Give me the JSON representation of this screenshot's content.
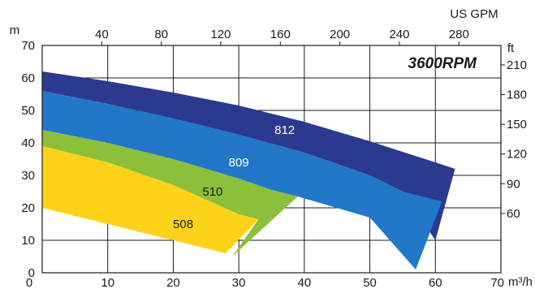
{
  "chart_data": {
    "type": "area",
    "title": "3600RPM",
    "x_unit_label": "m³/h",
    "y_unit_label": "m",
    "top_axis_unit_label": "US GPM",
    "right_axis_unit_label": "ft",
    "xlim": [
      0,
      70
    ],
    "ylim": [
      0,
      70
    ],
    "x_ticks": [
      0,
      10,
      20,
      30,
      40,
      50,
      60,
      70
    ],
    "y_ticks": [
      0,
      10,
      20,
      30,
      40,
      50,
      60,
      70
    ],
    "top_ticks_gpm": [
      40,
      80,
      120,
      160,
      200,
      240,
      280
    ],
    "right_ticks_ft": [
      60,
      90,
      120,
      150,
      180,
      210
    ],
    "grid": true,
    "series": [
      {
        "name": "812",
        "color": "#2b3a8f",
        "upper": [
          [
            0,
            62
          ],
          [
            10,
            59
          ],
          [
            20,
            55.5
          ],
          [
            30,
            51.5
          ],
          [
            40,
            46.5
          ],
          [
            50,
            40.5
          ],
          [
            60,
            34
          ],
          [
            63,
            32
          ]
        ],
        "lower": [
          [
            0,
            56
          ],
          [
            10,
            52
          ],
          [
            20,
            47.5
          ],
          [
            30,
            42.5
          ],
          [
            40,
            37
          ],
          [
            50,
            30
          ],
          [
            55,
            25
          ],
          [
            60,
            10
          ]
        ],
        "label_pos": [
          37,
          44
        ]
      },
      {
        "name": "809",
        "color": "#2178c8",
        "upper": [
          [
            0,
            56
          ],
          [
            10,
            52
          ],
          [
            20,
            47.5
          ],
          [
            30,
            42.5
          ],
          [
            40,
            37
          ],
          [
            50,
            30
          ],
          [
            55,
            25
          ],
          [
            61,
            22
          ]
        ],
        "lower": [
          [
            0,
            44
          ],
          [
            10,
            40
          ],
          [
            20,
            35
          ],
          [
            30,
            29
          ],
          [
            35,
            25.5
          ],
          [
            39,
            23.5
          ],
          [
            50,
            17
          ],
          [
            57,
            1
          ]
        ],
        "label_pos": [
          30,
          34
        ]
      },
      {
        "name": "510",
        "color": "#8cbf3a",
        "upper": [
          [
            0,
            44
          ],
          [
            10,
            40
          ],
          [
            20,
            35
          ],
          [
            30,
            29
          ],
          [
            35,
            25.5
          ],
          [
            39,
            23.5
          ]
        ],
        "lower": [
          [
            0,
            39
          ],
          [
            10,
            34
          ],
          [
            20,
            27
          ],
          [
            30,
            18
          ],
          [
            33,
            16.5
          ],
          [
            29,
            5
          ]
        ],
        "label_pos": [
          26,
          25
        ]
      },
      {
        "name": "508",
        "color": "#ffd21a",
        "upper": [
          [
            0,
            39
          ],
          [
            10,
            34
          ],
          [
            20,
            27
          ],
          [
            30,
            18
          ],
          [
            33,
            16.5
          ]
        ],
        "lower": [
          [
            0,
            20
          ],
          [
            10,
            15
          ],
          [
            20,
            10
          ],
          [
            28,
            6
          ]
        ],
        "label_pos": [
          21.5,
          15
        ]
      }
    ]
  }
}
